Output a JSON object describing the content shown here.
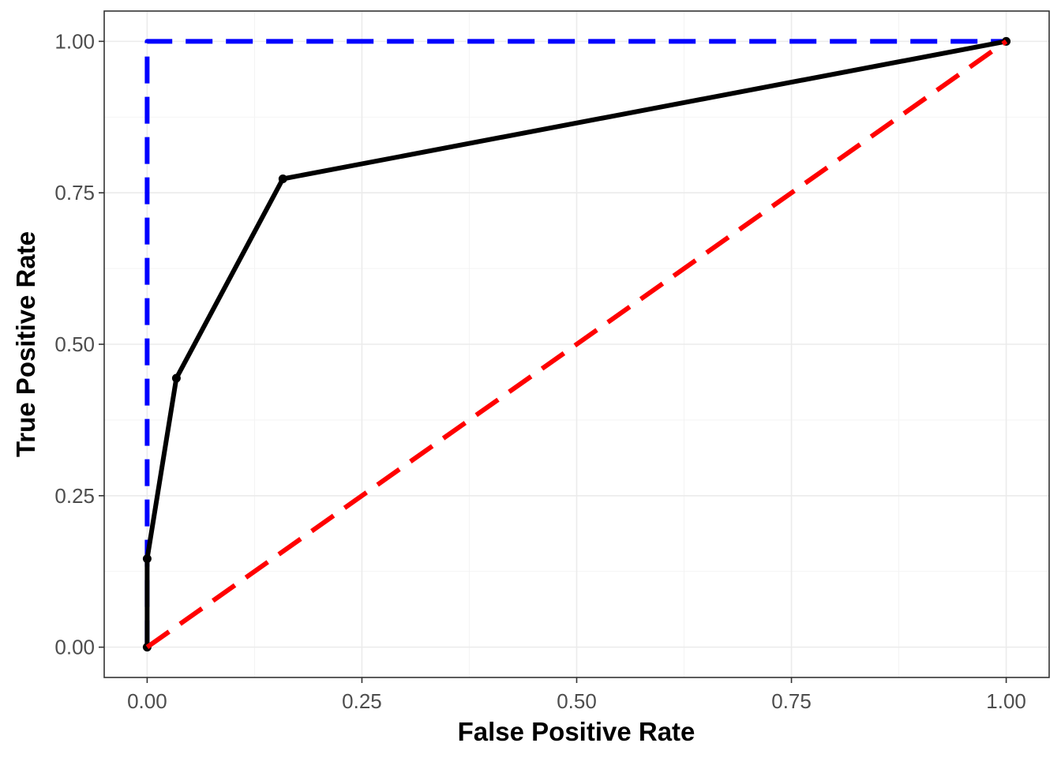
{
  "chart_data": {
    "type": "line",
    "title": "",
    "xlabel": "False Positive Rate",
    "ylabel": "True Positive Rate",
    "xlim": [
      -0.05,
      1.05
    ],
    "ylim": [
      -0.05,
      1.05
    ],
    "x_ticks": [
      0,
      0.25,
      0.5,
      0.75,
      1
    ],
    "x_tick_labels": [
      "0.00",
      "0.25",
      "0.50",
      "0.75",
      "1.00"
    ],
    "y_ticks": [
      0,
      0.25,
      0.5,
      0.75,
      1
    ],
    "y_tick_labels": [
      "0.00",
      "0.25",
      "0.50",
      "0.75",
      "1.00"
    ],
    "grid": true,
    "legend": "none",
    "series": [
      {
        "style": "dashed",
        "color": "#0000ff",
        "x": [
          0,
          0,
          1
        ],
        "y": [
          0,
          1,
          1
        ]
      },
      {
        "style": "dashed",
        "color": "#ff0000",
        "x": [
          0,
          1
        ],
        "y": [
          0,
          1
        ]
      },
      {
        "style": "solid",
        "color": "#000000",
        "markers": true,
        "x": [
          0,
          0,
          0.034,
          0.158,
          1
        ],
        "y": [
          0,
          0.146,
          0.444,
          0.773,
          1
        ]
      }
    ]
  }
}
